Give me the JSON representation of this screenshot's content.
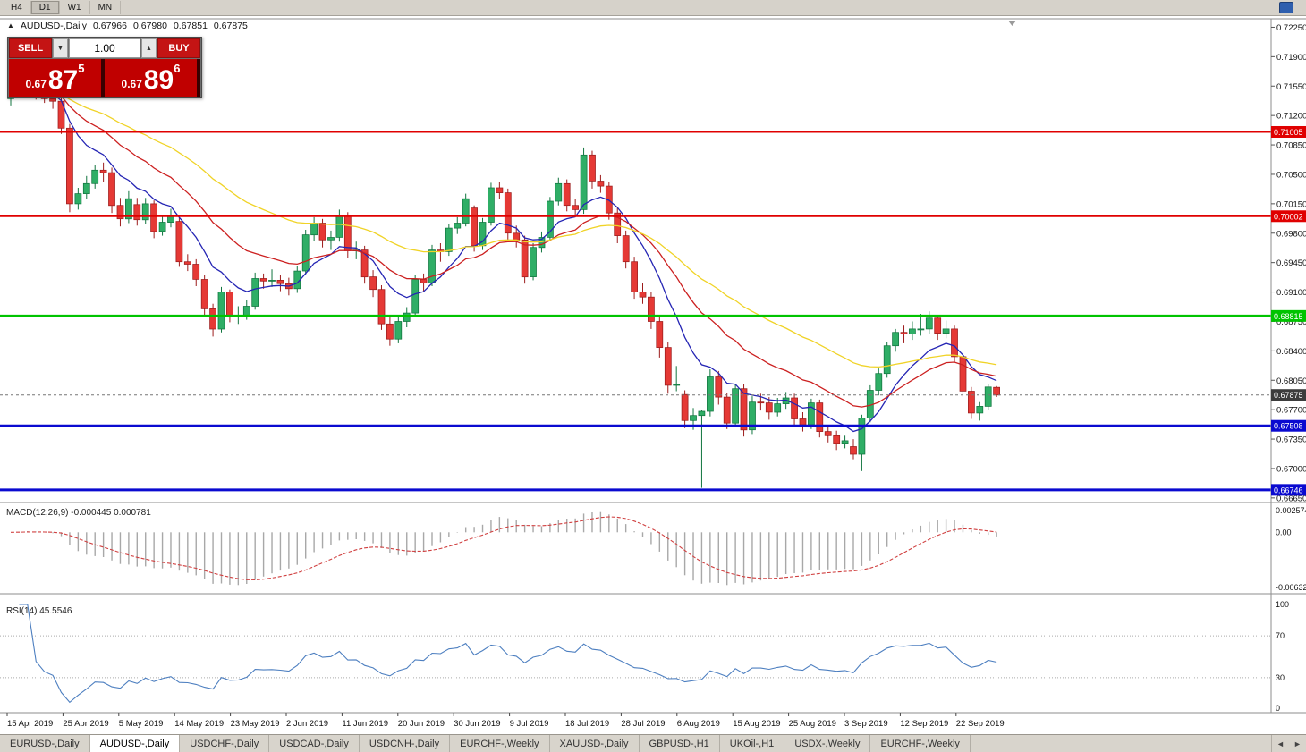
{
  "toolbar": {
    "timeframes": [
      "H4",
      "D1",
      "W1",
      "MN"
    ],
    "active": "D1"
  },
  "icons": {
    "up_triangle": "▲",
    "down_triangle": "▼",
    "left_arrow": "◄",
    "right_arrow": "►"
  },
  "ohlc": {
    "symbol": "AUDUSD-,Daily",
    "open": "0.67966",
    "high": "0.67980",
    "low": "0.67851",
    "close": "0.67875"
  },
  "trade": {
    "sell_label": "SELL",
    "buy_label": "BUY",
    "volume": "1.00",
    "sell_price": {
      "prefix": "0.67",
      "big": "87",
      "sup": "5"
    },
    "buy_price": {
      "prefix": "0.67",
      "big": "89",
      "sup": "6"
    }
  },
  "price_axis": [
    "0.72250",
    "0.71900",
    "0.71550",
    "0.71200",
    "0.70850",
    "0.70500",
    "0.70150",
    "0.69800",
    "0.69450",
    "0.69100",
    "0.68750",
    "0.68400",
    "0.68050",
    "0.67700",
    "0.67350",
    "0.67000",
    "0.66650"
  ],
  "macd": {
    "label": "MACD(12,26,9)",
    "values": "-0.000445 0.000781",
    "axis": [
      "0.002574",
      "0.00",
      "-0.006326"
    ]
  },
  "rsi": {
    "label": "RSI(14)",
    "value": "45.5546",
    "axis": [
      "100",
      "70",
      "30",
      "0"
    ],
    "levels": [
      70,
      30
    ]
  },
  "tabs": {
    "items": [
      "EURUSD-,Daily",
      "AUDUSD-,Daily",
      "USDCHF-,Daily",
      "USDCAD-,Daily",
      "USDCNH-,Daily",
      "EURCHF-,Weekly",
      "XAUUSD-,Daily",
      "GBPUSD-,H1",
      "UKOil-,H1",
      "USDX-,Weekly",
      "EURCHF-,Weekly"
    ],
    "active_index": 1
  },
  "chart_data": {
    "type": "candlestick",
    "title": "AUDUSD-,Daily",
    "symbol": "AUDUSD",
    "timeframe": "Daily",
    "x_labels": [
      "15 Apr 2019",
      "25 Apr 2019",
      "5 May 2019",
      "14 May 2019",
      "23 May 2019",
      "2 Jun 2019",
      "11 Jun 2019",
      "20 Jun 2019",
      "30 Jun 2019",
      "9 Jul 2019",
      "18 Jul 2019",
      "28 Jul 2019",
      "6 Aug 2019",
      "15 Aug 2019",
      "25 Aug 2019",
      "3 Sep 2019",
      "12 Sep 2019",
      "22 Sep 2019"
    ],
    "y_range": [
      0.6657,
      0.7234
    ],
    "colors": {
      "up": "#2fae66",
      "up_stroke": "#11753f",
      "down": "#e53935",
      "down_stroke": "#9c1c1c",
      "macd_hist": "#a8a8a8",
      "macd_signal": "#d04040",
      "rsi_line": "#4d7fc0"
    },
    "moving_averages": [
      {
        "name": "fast-ma",
        "period": 9,
        "color": "#2525b4"
      },
      {
        "name": "mid-ma",
        "period": 20,
        "color": "#cc2020"
      },
      {
        "name": "slow-ma",
        "period": 40,
        "color": "#f0d327"
      }
    ],
    "levels": [
      {
        "price": 0.71005,
        "label": "0.71005",
        "color": "#e00000",
        "width": 2
      },
      {
        "price": 0.70002,
        "label": "0.70002",
        "color": "#e00000",
        "width": 2
      },
      {
        "price": 0.68815,
        "label": "0.68815",
        "color": "#00c400",
        "width": 3
      },
      {
        "price": 0.67508,
        "label": "0.67508",
        "color": "#0a0ad0",
        "width": 3
      },
      {
        "price": 0.66746,
        "label": "0.66746",
        "color": "#0a0ad0",
        "width": 3
      }
    ],
    "current_price": {
      "price": 0.67875,
      "label": "0.67875"
    },
    "candles": [
      [
        0.714,
        0.7155,
        0.7132,
        0.7148
      ],
      [
        0.7148,
        0.7163,
        0.7143,
        0.7155
      ],
      [
        0.7155,
        0.7166,
        0.7147,
        0.7158
      ],
      [
        0.7158,
        0.7163,
        0.7139,
        0.7146
      ],
      [
        0.7146,
        0.7153,
        0.7135,
        0.714
      ],
      [
        0.714,
        0.7147,
        0.7128,
        0.7137
      ],
      [
        0.7137,
        0.7142,
        0.7098,
        0.7105
      ],
      [
        0.7105,
        0.711,
        0.7005,
        0.7015
      ],
      [
        0.7015,
        0.7034,
        0.7008,
        0.7027
      ],
      [
        0.7027,
        0.7048,
        0.7021,
        0.7039
      ],
      [
        0.7039,
        0.7061,
        0.7033,
        0.7055
      ],
      [
        0.7055,
        0.7064,
        0.7041,
        0.7052
      ],
      [
        0.7052,
        0.7058,
        0.7004,
        0.7013
      ],
      [
        0.7013,
        0.7022,
        0.6988,
        0.6997
      ],
      [
        0.6997,
        0.703,
        0.6992,
        0.7021
      ],
      [
        0.7014,
        0.7022,
        0.6989,
        0.6996
      ],
      [
        0.6996,
        0.7022,
        0.6991,
        0.7015
      ],
      [
        0.7015,
        0.7019,
        0.6974,
        0.6982
      ],
      [
        0.6982,
        0.7,
        0.6977,
        0.6993
      ],
      [
        0.6993,
        0.7009,
        0.6987,
        0.7
      ],
      [
        0.6994,
        0.6998,
        0.694,
        0.6946
      ],
      [
        0.6946,
        0.6955,
        0.6935,
        0.6943
      ],
      [
        0.6943,
        0.6949,
        0.6917,
        0.6925
      ],
      [
        0.6925,
        0.693,
        0.6882,
        0.689
      ],
      [
        0.689,
        0.6896,
        0.6857,
        0.6866
      ],
      [
        0.6866,
        0.6916,
        0.6862,
        0.691
      ],
      [
        0.691,
        0.6913,
        0.6874,
        0.6881
      ],
      [
        0.6881,
        0.6893,
        0.6872,
        0.6882
      ],
      [
        0.6882,
        0.6901,
        0.6877,
        0.6893
      ],
      [
        0.6893,
        0.6933,
        0.6889,
        0.6926
      ],
      [
        0.6926,
        0.6932,
        0.6914,
        0.6923
      ],
      [
        0.6923,
        0.6937,
        0.6916,
        0.6924
      ],
      [
        0.6924,
        0.693,
        0.6911,
        0.692
      ],
      [
        0.692,
        0.6927,
        0.6906,
        0.6914
      ],
      [
        0.6914,
        0.6941,
        0.6909,
        0.6935
      ],
      [
        0.6935,
        0.6984,
        0.6931,
        0.6978
      ],
      [
        0.6978,
        0.6999,
        0.6971,
        0.6992
      ],
      [
        0.6992,
        0.6997,
        0.6963,
        0.6972
      ],
      [
        0.6972,
        0.6983,
        0.696,
        0.6975
      ],
      [
        0.6975,
        0.7008,
        0.697,
        0.7001
      ],
      [
        0.7001,
        0.7005,
        0.695,
        0.6959
      ],
      [
        0.6959,
        0.697,
        0.6949,
        0.696
      ],
      [
        0.696,
        0.6965,
        0.692,
        0.6928
      ],
      [
        0.6928,
        0.6936,
        0.6904,
        0.6913
      ],
      [
        0.6913,
        0.6918,
        0.6865,
        0.6872
      ],
      [
        0.6872,
        0.688,
        0.6846,
        0.6854
      ],
      [
        0.6854,
        0.6881,
        0.6849,
        0.6875
      ],
      [
        0.6875,
        0.6892,
        0.6868,
        0.6885
      ],
      [
        0.6885,
        0.693,
        0.6881,
        0.6925
      ],
      [
        0.6925,
        0.6932,
        0.6911,
        0.6921
      ],
      [
        0.6921,
        0.6966,
        0.6917,
        0.696
      ],
      [
        0.696,
        0.6968,
        0.6946,
        0.6958
      ],
      [
        0.6958,
        0.6991,
        0.6953,
        0.6986
      ],
      [
        0.6986,
        0.6999,
        0.6979,
        0.6992
      ],
      [
        0.6992,
        0.7027,
        0.6988,
        0.7021
      ],
      [
        0.701,
        0.7013,
        0.6958,
        0.6965
      ],
      [
        0.6965,
        0.6998,
        0.696,
        0.6993
      ],
      [
        0.6993,
        0.704,
        0.6989,
        0.7034
      ],
      [
        0.7034,
        0.7041,
        0.7021,
        0.7028
      ],
      [
        0.7028,
        0.7033,
        0.6972,
        0.698
      ],
      [
        0.698,
        0.6989,
        0.6963,
        0.6972
      ],
      [
        0.6972,
        0.6977,
        0.692,
        0.6928
      ],
      [
        0.6928,
        0.6968,
        0.6924,
        0.6963
      ],
      [
        0.6963,
        0.6982,
        0.6957,
        0.6975
      ],
      [
        0.6975,
        0.7023,
        0.6971,
        0.7018
      ],
      [
        0.7018,
        0.7046,
        0.7013,
        0.7039
      ],
      [
        0.7039,
        0.7044,
        0.7006,
        0.7013
      ],
      [
        0.7013,
        0.7021,
        0.7,
        0.7008
      ],
      [
        0.7008,
        0.7082,
        0.7003,
        0.7073
      ],
      [
        0.7073,
        0.7078,
        0.7033,
        0.7042
      ],
      [
        0.7042,
        0.7049,
        0.7028,
        0.7036
      ],
      [
        0.7036,
        0.7041,
        0.6996,
        0.7004
      ],
      [
        0.7004,
        0.7011,
        0.6968,
        0.6977
      ],
      [
        0.6977,
        0.6983,
        0.6938,
        0.6946
      ],
      [
        0.6946,
        0.6952,
        0.6902,
        0.691
      ],
      [
        0.691,
        0.6921,
        0.6896,
        0.6904
      ],
      [
        0.6904,
        0.691,
        0.6866,
        0.6875
      ],
      [
        0.6875,
        0.6881,
        0.6832,
        0.6844
      ],
      [
        0.6844,
        0.685,
        0.6789,
        0.6799
      ],
      [
        0.6799,
        0.6822,
        0.6792,
        0.68
      ],
      [
        0.6788,
        0.6793,
        0.6748,
        0.6757
      ],
      [
        0.6757,
        0.6772,
        0.6746,
        0.6763
      ],
      [
        0.6763,
        0.677,
        0.6677,
        0.6768
      ],
      [
        0.6768,
        0.6818,
        0.6762,
        0.6809
      ],
      [
        0.6809,
        0.6816,
        0.6776,
        0.6785
      ],
      [
        0.6785,
        0.679,
        0.6747,
        0.6754
      ],
      [
        0.6754,
        0.6801,
        0.675,
        0.6795
      ],
      [
        0.6795,
        0.68,
        0.6738,
        0.6746
      ],
      [
        0.6746,
        0.6786,
        0.6741,
        0.6779
      ],
      [
        0.6779,
        0.6789,
        0.6769,
        0.6778
      ],
      [
        0.6778,
        0.6785,
        0.6758,
        0.6767
      ],
      [
        0.6767,
        0.6784,
        0.6762,
        0.6777
      ],
      [
        0.6777,
        0.6791,
        0.6771,
        0.6784
      ],
      [
        0.6784,
        0.6789,
        0.6751,
        0.6759
      ],
      [
        0.6759,
        0.6767,
        0.6744,
        0.6752
      ],
      [
        0.6752,
        0.6783,
        0.6747,
        0.6778
      ],
      [
        0.6778,
        0.6782,
        0.6737,
        0.6744
      ],
      [
        0.6744,
        0.6752,
        0.6731,
        0.6739
      ],
      [
        0.6739,
        0.6745,
        0.6722,
        0.673
      ],
      [
        0.673,
        0.6739,
        0.6724,
        0.6733
      ],
      [
        0.6726,
        0.6735,
        0.6711,
        0.6717
      ],
      [
        0.6717,
        0.6764,
        0.6697,
        0.676
      ],
      [
        0.676,
        0.6799,
        0.6755,
        0.6793
      ],
      [
        0.6793,
        0.6819,
        0.6787,
        0.6813
      ],
      [
        0.6813,
        0.6851,
        0.6808,
        0.6846
      ],
      [
        0.6846,
        0.6866,
        0.6839,
        0.6862
      ],
      [
        0.6862,
        0.687,
        0.6849,
        0.686
      ],
      [
        0.686,
        0.6875,
        0.6853,
        0.6866
      ],
      [
        0.6866,
        0.6884,
        0.6858,
        0.6866
      ],
      [
        0.6866,
        0.6887,
        0.686,
        0.6879
      ],
      [
        0.6879,
        0.6882,
        0.6853,
        0.6861
      ],
      [
        0.6861,
        0.6876,
        0.6855,
        0.6866
      ],
      [
        0.6866,
        0.687,
        0.6827,
        0.6833
      ],
      [
        0.6833,
        0.6838,
        0.6785,
        0.6792
      ],
      [
        0.6792,
        0.6797,
        0.6759,
        0.6766
      ],
      [
        0.6766,
        0.6779,
        0.6757,
        0.6774
      ],
      [
        0.6774,
        0.6801,
        0.677,
        0.6797
      ],
      [
        0.67966,
        0.6798,
        0.67851,
        0.67875
      ]
    ]
  }
}
